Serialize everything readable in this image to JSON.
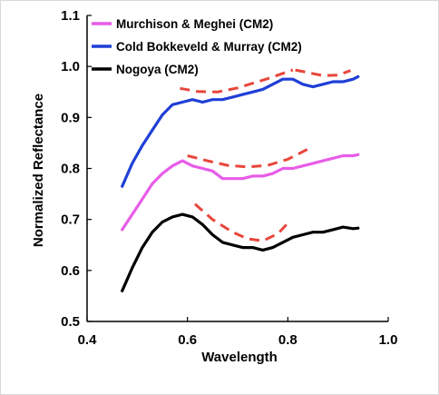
{
  "chart_data": {
    "type": "line",
    "title": "",
    "xlabel": "Wavelength",
    "ylabel": "Normalized  Reflectance",
    "xlim": [
      0.4,
      1.0
    ],
    "ylim": [
      0.5,
      1.1
    ],
    "x_ticks": [
      "0.4",
      "0.6",
      "0.8",
      "1.0"
    ],
    "y_ticks": [
      "0.5",
      "0.6",
      "0.7",
      "0.8",
      "0.9",
      "1.0",
      "1.1"
    ],
    "grid": false,
    "legend_position": "top-left",
    "series": [
      {
        "name": "Murchison & Meghei (CM2)",
        "color": "#e85ce8",
        "x": [
          0.47,
          0.49,
          0.51,
          0.53,
          0.55,
          0.57,
          0.59,
          0.61,
          0.63,
          0.65,
          0.67,
          0.69,
          0.71,
          0.73,
          0.75,
          0.77,
          0.79,
          0.81,
          0.83,
          0.85,
          0.87,
          0.89,
          0.91,
          0.93,
          0.94
        ],
        "y": [
          0.68,
          0.71,
          0.74,
          0.77,
          0.79,
          0.805,
          0.815,
          0.805,
          0.8,
          0.795,
          0.78,
          0.78,
          0.78,
          0.785,
          0.785,
          0.79,
          0.8,
          0.8,
          0.805,
          0.81,
          0.815,
          0.82,
          0.825,
          0.825,
          0.827
        ]
      },
      {
        "name": "Cold Bokkeveld & Murray (CM2)",
        "color": "#1f3fd6",
        "x": [
          0.47,
          0.49,
          0.51,
          0.53,
          0.55,
          0.57,
          0.59,
          0.61,
          0.63,
          0.65,
          0.67,
          0.69,
          0.71,
          0.73,
          0.75,
          0.77,
          0.79,
          0.81,
          0.83,
          0.85,
          0.87,
          0.89,
          0.91,
          0.93,
          0.94
        ],
        "y": [
          0.765,
          0.81,
          0.845,
          0.875,
          0.905,
          0.925,
          0.93,
          0.935,
          0.93,
          0.935,
          0.935,
          0.94,
          0.945,
          0.95,
          0.955,
          0.965,
          0.975,
          0.975,
          0.965,
          0.96,
          0.965,
          0.97,
          0.97,
          0.975,
          0.98
        ]
      },
      {
        "name": "Nogoya (CM2)",
        "color": "#000000",
        "x": [
          0.47,
          0.49,
          0.51,
          0.53,
          0.55,
          0.57,
          0.59,
          0.61,
          0.63,
          0.65,
          0.67,
          0.69,
          0.71,
          0.73,
          0.75,
          0.77,
          0.79,
          0.81,
          0.83,
          0.85,
          0.87,
          0.89,
          0.91,
          0.93,
          0.94
        ],
        "y": [
          0.56,
          0.605,
          0.645,
          0.675,
          0.695,
          0.705,
          0.71,
          0.705,
          0.69,
          0.67,
          0.655,
          0.65,
          0.645,
          0.645,
          0.64,
          0.645,
          0.655,
          0.665,
          0.67,
          0.675,
          0.675,
          0.68,
          0.685,
          0.682,
          0.683
        ]
      }
    ],
    "fits": [
      {
        "color": "#e8463b",
        "x": [
          0.585,
          0.62,
          0.66,
          0.7,
          0.73,
          0.76,
          0.795,
          0.81
        ],
        "y": [
          0.957,
          0.951,
          0.95,
          0.958,
          0.967,
          0.976,
          0.988,
          0.993
        ]
      },
      {
        "color": "#e8463b",
        "x": [
          0.815,
          0.84,
          0.87,
          0.9,
          0.925
        ],
        "y": [
          0.993,
          0.988,
          0.982,
          0.983,
          0.992
        ]
      },
      {
        "color": "#e8463b",
        "x": [
          0.6,
          0.64,
          0.68,
          0.72,
          0.76,
          0.8,
          0.84
        ],
        "y": [
          0.825,
          0.815,
          0.806,
          0.803,
          0.806,
          0.818,
          0.838
        ]
      },
      {
        "color": "#e8463b",
        "x": [
          0.615,
          0.65,
          0.69,
          0.72,
          0.75,
          0.78,
          0.805
        ],
        "y": [
          0.73,
          0.7,
          0.675,
          0.662,
          0.658,
          0.672,
          0.698
        ]
      }
    ]
  }
}
